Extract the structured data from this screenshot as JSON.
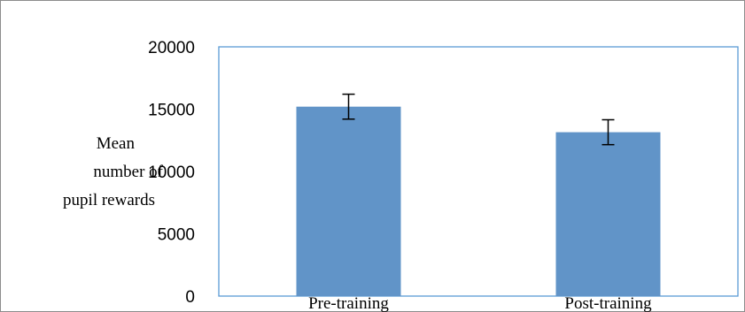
{
  "chart_data": {
    "type": "bar",
    "title": "",
    "xlabel": "",
    "ylabel_lines": [
      "Mean",
      "number of",
      "pupil rewards"
    ],
    "categories": [
      "Pre-training",
      "Post-training"
    ],
    "series": [
      {
        "values": [
          15200,
          13150
        ],
        "error": [
          1000,
          1000
        ],
        "color": "#6194c8"
      }
    ],
    "ylim": [
      0,
      20000
    ],
    "yticks": [
      0,
      5000,
      10000,
      15000,
      20000
    ],
    "grid": false,
    "legend": "none",
    "plot_border_color": "#5b9bd5"
  }
}
